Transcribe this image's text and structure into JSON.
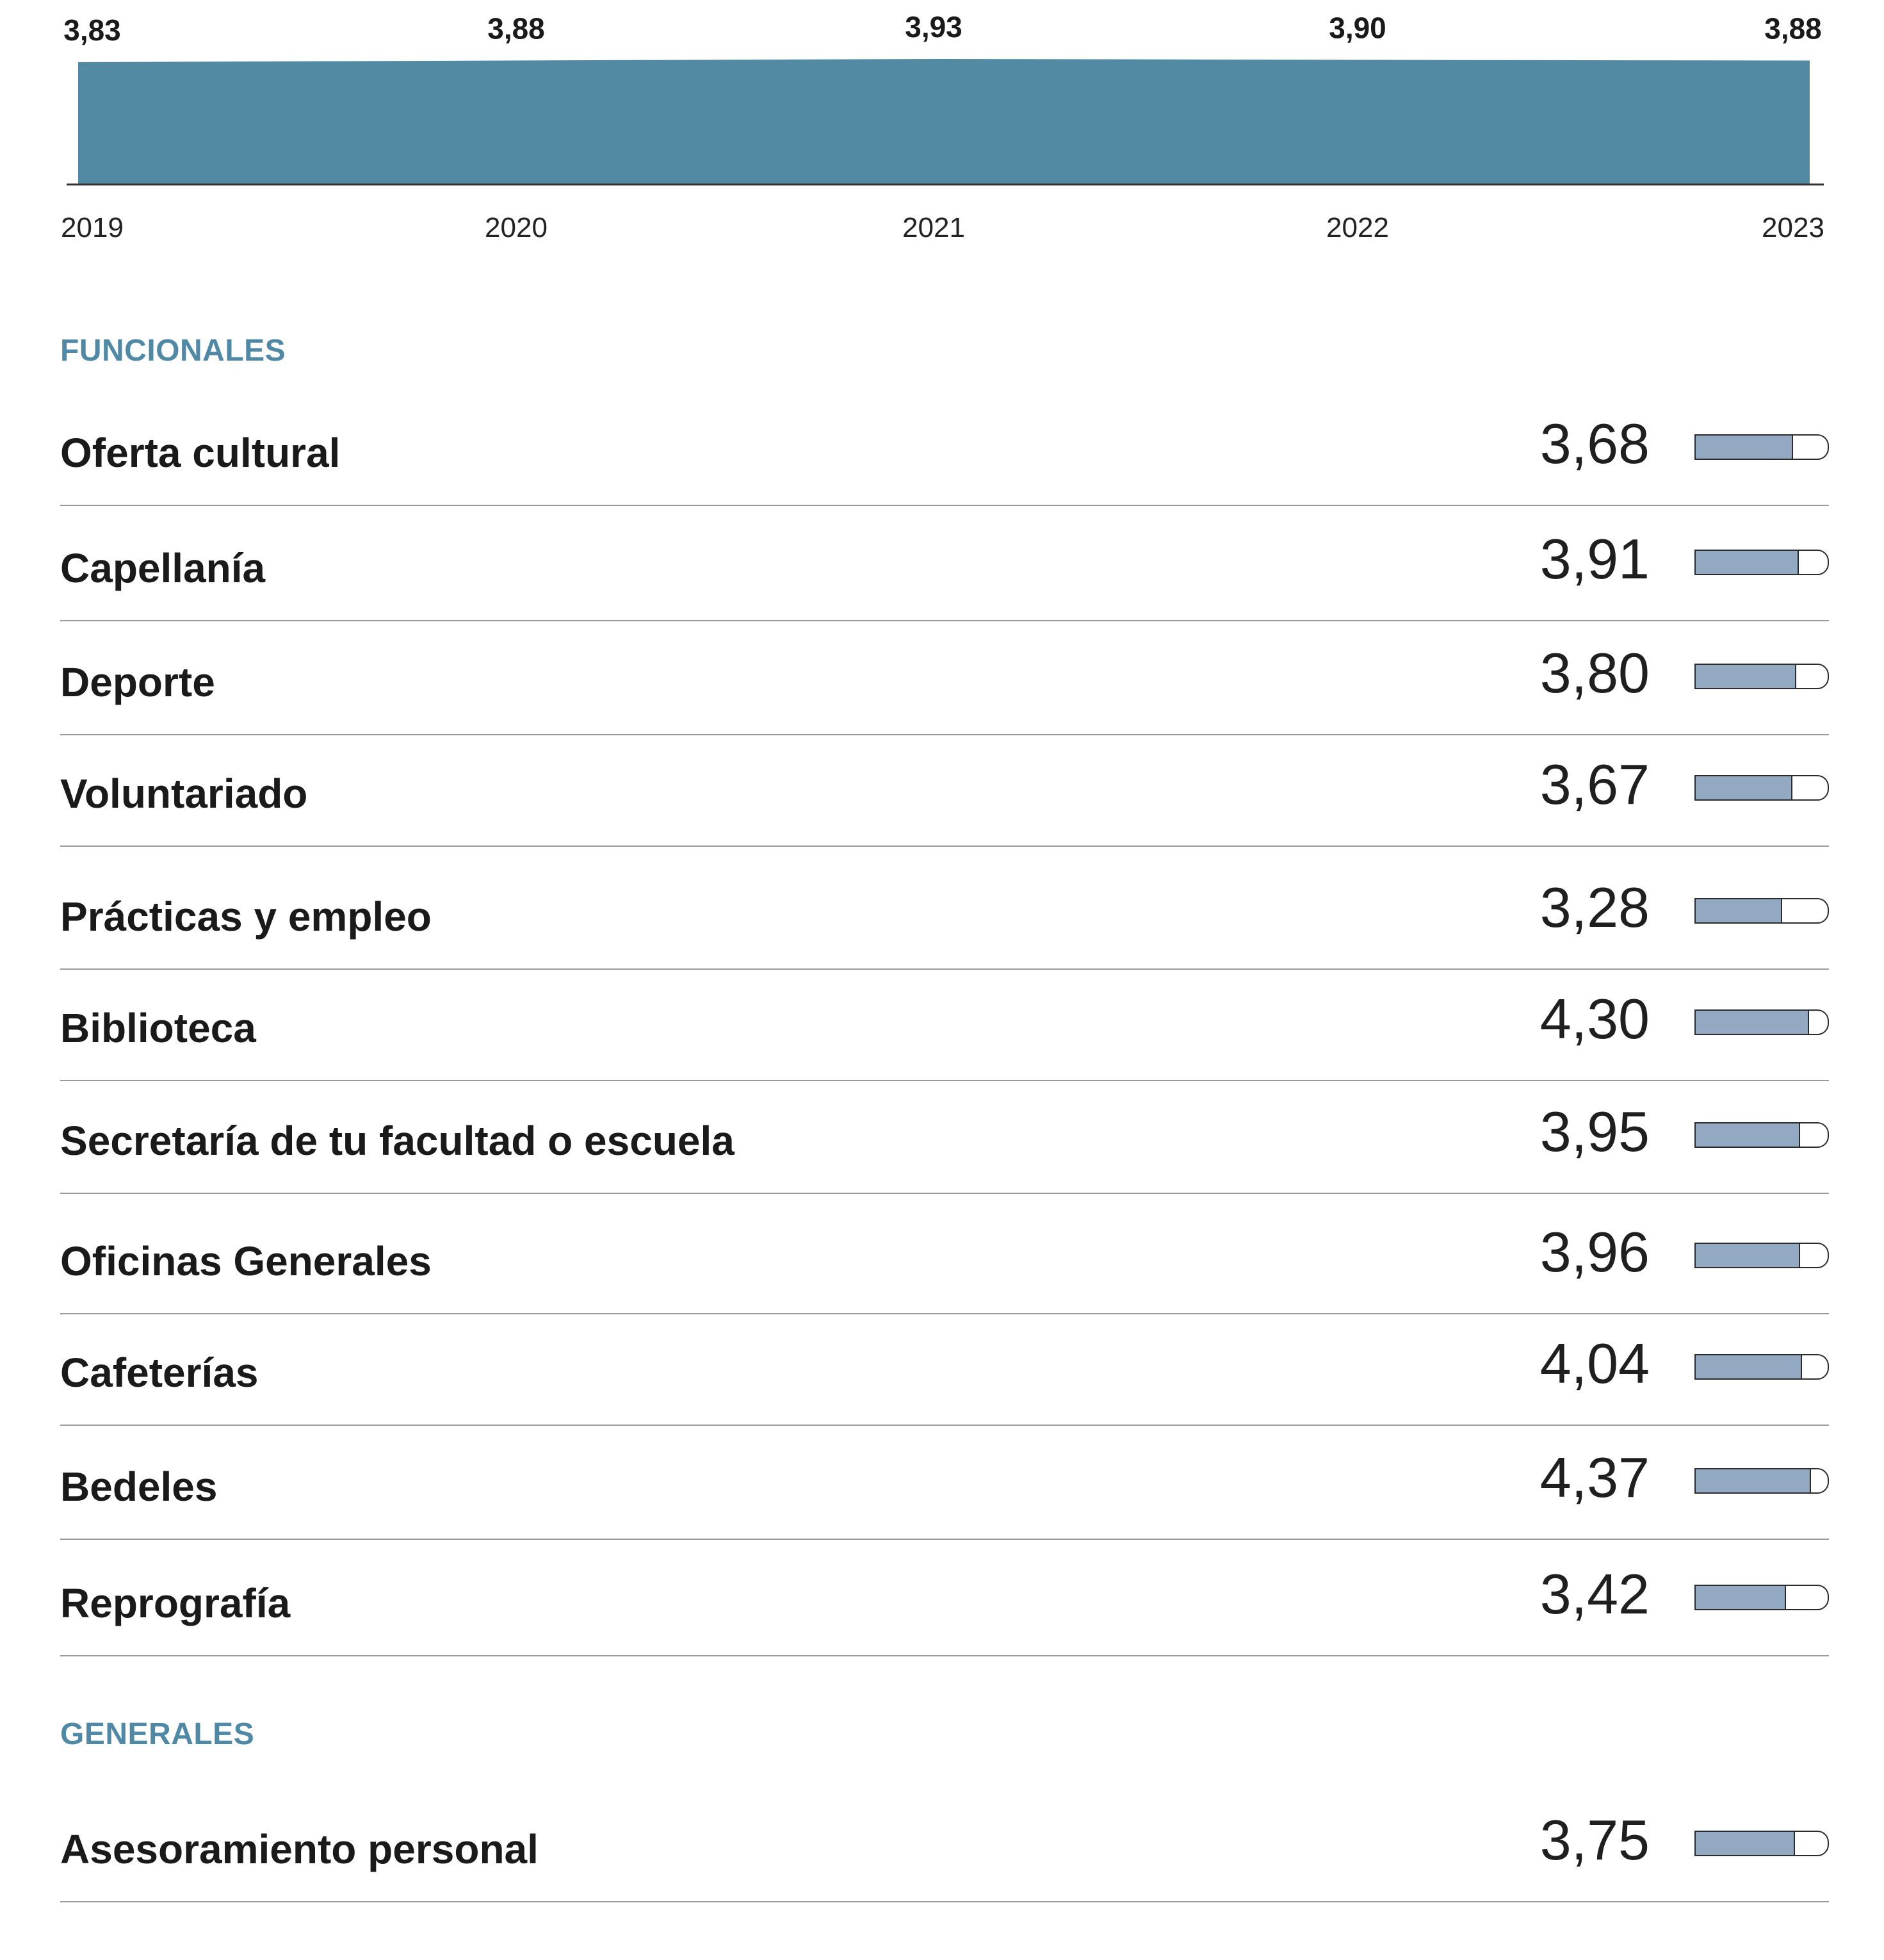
{
  "chart_data": [
    {
      "type": "area",
      "x": [
        "2019",
        "2020",
        "2021",
        "2022",
        "2023"
      ],
      "series": [
        {
          "values": [
            3.83,
            3.88,
            3.93,
            3.9,
            3.88
          ]
        }
      ],
      "point_labels": [
        "3,83",
        "3,88",
        "3,93",
        "3,90",
        "3,88"
      ],
      "fill_color": "#528aa3",
      "grid": false
    },
    {
      "type": "table",
      "scale_max": 5,
      "bar_color": "#93a9c2",
      "sections": [
        {
          "heading": "FUNCIONALES",
          "rows": [
            {
              "label": "Oferta cultural",
              "value_text": "3,68",
              "value": 3.68
            },
            {
              "label": "Capellanía",
              "value_text": "3,91",
              "value": 3.91
            },
            {
              "label": "Deporte",
              "value_text": "3,80",
              "value": 3.8
            },
            {
              "label": "Voluntariado",
              "value_text": "3,67",
              "value": 3.67
            },
            {
              "label": "Prácticas y empleo",
              "value_text": "3,28",
              "value": 3.28
            },
            {
              "label": "Biblioteca",
              "value_text": "4,30",
              "value": 4.3
            },
            {
              "label": "Secretaría de tu facultad o escuela",
              "value_text": "3,95",
              "value": 3.95
            },
            {
              "label": "Oficinas Generales",
              "value_text": "3,96",
              "value": 3.96
            },
            {
              "label": "Cafeterías",
              "value_text": "4,04",
              "value": 4.04
            },
            {
              "label": "Bedeles",
              "value_text": "4,37",
              "value": 4.37
            },
            {
              "label": "Reprografía",
              "value_text": "3,42",
              "value": 3.42
            }
          ]
        },
        {
          "heading": "GENERALES",
          "rows": [
            {
              "label": "Asesoramiento personal",
              "value_text": "3,75",
              "value": 3.75
            }
          ]
        }
      ]
    }
  ]
}
